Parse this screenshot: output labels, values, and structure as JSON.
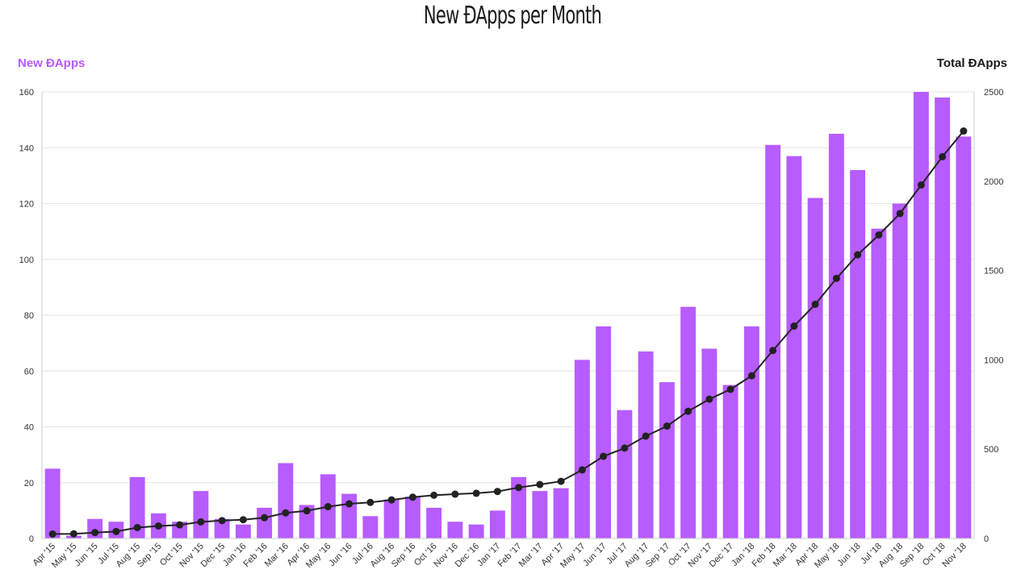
{
  "title": "New ĐApps per Month",
  "colors": {
    "bars": "#b75cff",
    "line": "#222222",
    "left_axis_title": "#b75cff",
    "right_axis_title": "#1a1a1a",
    "grid": "#e6e6e6"
  },
  "chart_data": {
    "type": "bar",
    "title": "New ĐApps per Month",
    "categories": [
      "Apr '15",
      "May '15",
      "Jun '15",
      "Jul '15",
      "Aug '15",
      "Sep '15",
      "Oct '15",
      "Nov '15",
      "Dec '15",
      "Jan '16",
      "Feb '16",
      "Mar '16",
      "Apr '16",
      "May '16",
      "Jun '16",
      "Jul '16",
      "Aug '16",
      "Sep '16",
      "Oct '16",
      "Nov '16",
      "Dec '16",
      "Jan '17",
      "Feb '17",
      "Mar '17",
      "Apr '17",
      "May '17",
      "Jun '17",
      "Jul '17",
      "Aug '17",
      "Sep '17",
      "Oct '17",
      "Nov '17",
      "Dec '17",
      "Jan '18",
      "Feb '18",
      "Mar '18",
      "Apr '18",
      "May '18",
      "Jun '18",
      "Jul '18",
      "Aug '18",
      "Sep '18",
      "Oct '18",
      "Nov '18"
    ],
    "series": [
      {
        "name": "New ĐApps",
        "type": "bar",
        "axis": "left",
        "values": [
          25,
          1,
          7,
          6,
          22,
          9,
          6,
          17,
          7,
          5,
          11,
          27,
          12,
          23,
          16,
          8,
          14,
          15,
          11,
          6,
          5,
          10,
          22,
          17,
          18,
          64,
          76,
          46,
          67,
          56,
          83,
          68,
          55,
          76,
          141,
          137,
          122,
          145,
          132,
          111,
          120,
          160,
          158,
          144
        ]
      },
      {
        "name": "Total ĐApps",
        "type": "line",
        "axis": "right",
        "values": [
          25,
          26,
          33,
          39,
          61,
          70,
          76,
          93,
          100,
          105,
          116,
          143,
          155,
          178,
          194,
          202,
          216,
          231,
          242,
          248,
          253,
          263,
          285,
          302,
          320,
          384,
          460,
          506,
          573,
          629,
          712,
          780,
          835,
          911,
          1052,
          1189,
          1311,
          1456,
          1588,
          1699,
          1819,
          1979,
          2137,
          2281
        ]
      }
    ],
    "left_axis": {
      "label": "New ĐApps",
      "ylim": [
        0,
        160
      ],
      "ticks": [
        0,
        20,
        40,
        60,
        80,
        100,
        120,
        140,
        160
      ]
    },
    "right_axis": {
      "label": "Total ĐApps",
      "ylim": [
        0,
        2500
      ],
      "ticks": [
        0,
        500,
        1000,
        1500,
        2000,
        2500
      ]
    },
    "grid": true
  }
}
